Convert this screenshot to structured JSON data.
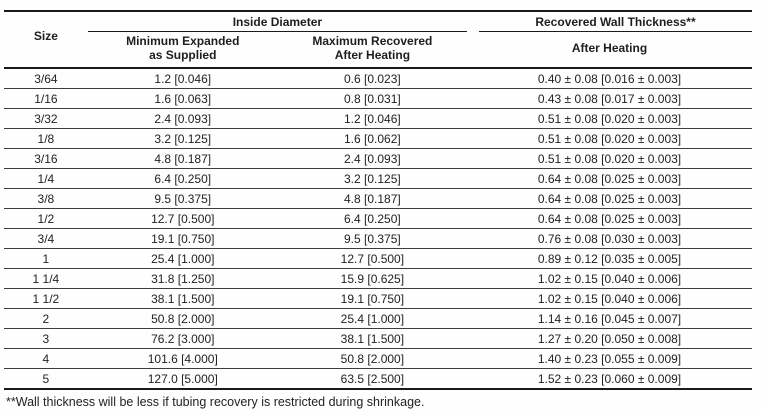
{
  "table": {
    "group_headers": {
      "inside_diameter": "Inside Diameter",
      "recovered_wall": "Recovered Wall Thickness**"
    },
    "col_headers": {
      "size": "Size",
      "min_expanded_line1": "Minimum Expanded",
      "min_expanded_line2": "as Supplied",
      "max_recovered_line1": "Maximum Recovered",
      "max_recovered_line2": "After Heating",
      "after_heating": "After Heating"
    },
    "rows": [
      {
        "size": "3/64",
        "min": "1.2 [0.046]",
        "max": "0.6 [0.023]",
        "wall": "0.40 ± 0.08 [0.016 ± 0.003]"
      },
      {
        "size": "1/16",
        "min": "1.6 [0.063]",
        "max": "0.8 [0.031]",
        "wall": "0.43 ± 0.08 [0.017 ± 0.003]"
      },
      {
        "size": "3/32",
        "min": "2.4 [0.093]",
        "max": "1.2 [0.046]",
        "wall": "0.51 ± 0.08 [0.020 ± 0.003]"
      },
      {
        "size": "1/8",
        "min": "3.2 [0.125]",
        "max": "1.6 [0.062]",
        "wall": "0.51 ± 0.08 [0.020 ± 0.003]"
      },
      {
        "size": "3/16",
        "min": "4.8 [0.187]",
        "max": "2.4 [0.093]",
        "wall": "0.51 ± 0.08 [0.020 ± 0.003]"
      },
      {
        "size": "1/4",
        "min": "6.4 [0.250]",
        "max": "3.2 [0.125]",
        "wall": "0.64 ± 0.08 [0.025 ± 0.003]"
      },
      {
        "size": "3/8",
        "min": "9.5 [0.375]",
        "max": "4.8 [0.187]",
        "wall": "0.64 ± 0.08 [0.025 ± 0.003]"
      },
      {
        "size": "1/2",
        "min": "12.7 [0.500]",
        "max": "6.4 [0.250]",
        "wall": "0.64 ± 0.08 [0.025 ± 0.003]"
      },
      {
        "size": "3/4",
        "min": "19.1 [0.750]",
        "max": "9.5 [0.375]",
        "wall": "0.76 ± 0.08 [0.030 ± 0.003]"
      },
      {
        "size": "1",
        "min": "25.4 [1.000]",
        "max": "12.7 [0.500]",
        "wall": "0.89 ± 0.12 [0.035 ± 0.005]"
      },
      {
        "size": "1 1/4",
        "min": "31.8 [1.250]",
        "max": "15.9 [0.625]",
        "wall": "1.02 ± 0.15 [0.040 ± 0.006]"
      },
      {
        "size": "1 1/2",
        "min": "38.1 [1.500]",
        "max": "19.1 [0.750]",
        "wall": "1.02 ± 0.15 [0.040 ± 0.006]"
      },
      {
        "size": "2",
        "min": "50.8 [2.000]",
        "max": "25.4 [1.000]",
        "wall": "1.14 ± 0.16 [0.045 ± 0.007]"
      },
      {
        "size": "3",
        "min": "76.2 [3.000]",
        "max": "38.1 [1.500]",
        "wall": "1.27 ± 0.20 [0.050 ± 0.008]"
      },
      {
        "size": "4",
        "min": "101.6 [4.000]",
        "max": "50.8 [2.000]",
        "wall": "1.40 ± 0.23 [0.055 ± 0.009]"
      },
      {
        "size": "5",
        "min": "127.0 [5.000]",
        "max": "63.5 [2.500]",
        "wall": "1.52 ± 0.23 [0.060 ± 0.009]"
      }
    ]
  },
  "footnote": "**Wall thickness will be less if tubing recovery is restricted during shrinkage.",
  "colors": {
    "text": "#222222",
    "rule_thick": "#1a1a1a",
    "rule_thin": "#3c3c3c",
    "background": "#fefefe"
  }
}
